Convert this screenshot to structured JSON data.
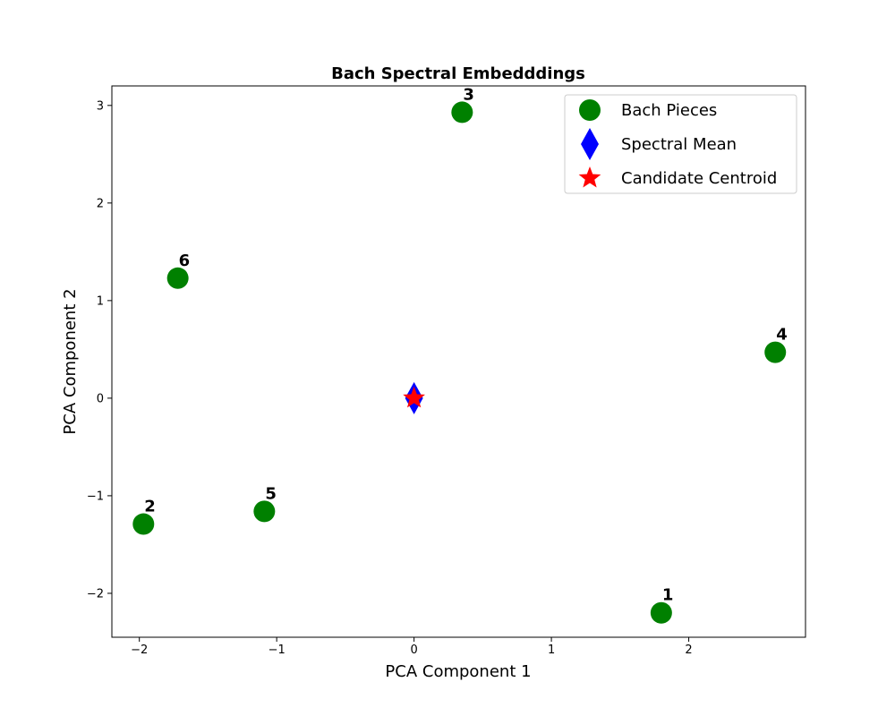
{
  "chart_data": {
    "type": "scatter",
    "title": "Bach Spectral Embedddings",
    "xlabel": "PCA Component 1",
    "ylabel": "PCA Component 2",
    "xlim": [
      -2.2,
      2.85
    ],
    "ylim": [
      -2.45,
      3.2
    ],
    "xticks": [
      -2,
      -1,
      0,
      1,
      2
    ],
    "yticks": [
      -2,
      -1,
      0,
      1,
      2,
      3
    ],
    "grid": false,
    "legend_position": "top-right",
    "series": [
      {
        "name": "Bach Pieces",
        "marker": "circle",
        "color": "#008000",
        "points": [
          {
            "label": "1",
            "x": 1.8,
            "y": -2.2
          },
          {
            "label": "2",
            "x": -1.97,
            "y": -1.29
          },
          {
            "label": "3",
            "x": 0.35,
            "y": 2.93
          },
          {
            "label": "4",
            "x": 2.63,
            "y": 0.47
          },
          {
            "label": "5",
            "x": -1.09,
            "y": -1.16
          },
          {
            "label": "6",
            "x": -1.72,
            "y": 1.23
          }
        ]
      },
      {
        "name": "Spectral Mean",
        "marker": "diamond",
        "color": "#0000ff",
        "points": [
          {
            "x": 0.0,
            "y": 0.0
          }
        ]
      },
      {
        "name": "Candidate Centroid",
        "marker": "star",
        "color": "#ff0000",
        "points": [
          {
            "x": 0.0,
            "y": 0.0
          }
        ]
      }
    ]
  }
}
